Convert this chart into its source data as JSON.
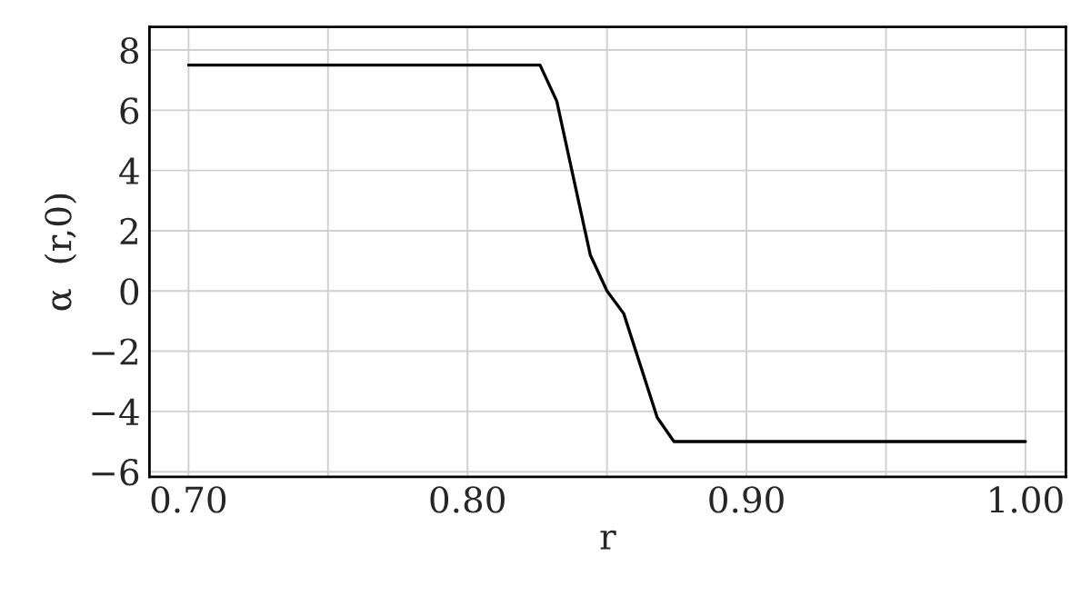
{
  "chart_data": {
    "type": "line",
    "xlabel": "r",
    "ylabel": "α  (r,0)",
    "x": [
      0.7,
      0.826,
      0.832,
      0.844,
      0.85,
      0.856,
      0.868,
      0.874,
      1.0
    ],
    "series": [
      {
        "color": "#000000",
        "values": [
          7.5,
          7.5,
          6.3,
          1.2,
          0.0,
          -0.75,
          -4.2,
          -5.0,
          -5.0
        ]
      }
    ],
    "xlim": [
      0.686,
      1.0145
    ],
    "ylim": [
      -6.17,
      8.77
    ],
    "xticks": [
      {
        "value": 0.7,
        "label": "0.70"
      },
      {
        "value": 0.75,
        "label": null
      },
      {
        "value": 0.8,
        "label": "0.80"
      },
      {
        "value": 0.85,
        "label": null
      },
      {
        "value": 0.9,
        "label": "0.90"
      },
      {
        "value": 0.95,
        "label": null
      },
      {
        "value": 1.0,
        "label": "1.00"
      }
    ],
    "yticks": [
      -6,
      -4,
      -2,
      0,
      2,
      4,
      6,
      8
    ],
    "grid": true,
    "marker": "none",
    "line_style": "solid"
  }
}
